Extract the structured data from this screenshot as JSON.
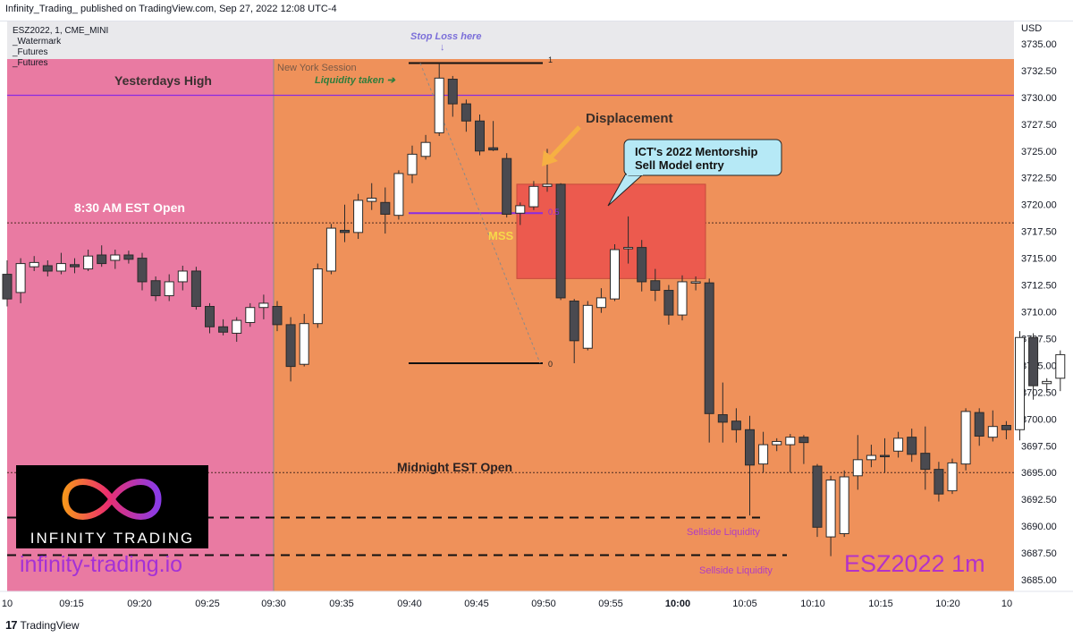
{
  "header": {
    "published": "Infinity_Trading_ published on TradingView.com, Sep 27, 2022 12:08 UTC-4",
    "symbol_line": "ESZ2022, 1, CME_MINI",
    "legend": [
      "_Watermark",
      "_Futures",
      "_Futures"
    ],
    "currency": "USD"
  },
  "footer": {
    "brand": "TradingView"
  },
  "colors": {
    "premarket_bg": "#e97aa2",
    "session_bg": "#ef915a",
    "fvg_box": "#ec5a4e",
    "callout": "#b6e9f6",
    "yesterday_high_line": "#8a2be2",
    "candle_dark": "#4a4a50"
  },
  "annotations": {
    "stop_loss": "Stop Loss here",
    "stop_arrow": "↓",
    "ny_session": "New York Session",
    "liquidity_taken": "Liquidity taken ➔",
    "yesterdays_high": "Yesterdays High",
    "open_830": "8:30 AM EST Open",
    "midnight_open": "Midnight EST Open",
    "displacement": "Displacement",
    "callout_line1": "ICT's 2022 Mentorship",
    "callout_line2": "Sell Model entry",
    "mss": "MSS",
    "fib_1": "1",
    "fib_05": "0.5",
    "fib_0": "0",
    "sellside1": "Sellside Liquidity",
    "sellside2": "Sellside Liquidity"
  },
  "watermark": {
    "name": "INFINITY TRADING",
    "site": "infinity-trading.io",
    "symbol": "ESZ2022   1m"
  },
  "chart_data": {
    "type": "candlestick",
    "symbol": "ESZ2022",
    "interval": "1",
    "exchange": "CME_MINI",
    "ylim": [
      3684.5,
      3735.5
    ],
    "y_ticks": [
      "3735.00",
      "3732.50",
      "3730.00",
      "3727.50",
      "3725.00",
      "3722.50",
      "3720.00",
      "3717.50",
      "3715.00",
      "3712.50",
      "3710.00",
      "3707.50",
      "3705.00",
      "3702.50",
      "3700.00",
      "3697.50",
      "3695.00",
      "3692.50",
      "3690.00",
      "3687.50",
      "3685.00"
    ],
    "x_ticks": [
      "10",
      "09:15",
      "09:20",
      "09:25",
      "09:30",
      "09:35",
      "09:40",
      "09:45",
      "09:50",
      "09:55",
      "10:00",
      "10:05",
      "10:10",
      "10:15",
      "10:20",
      "10"
    ],
    "levels": {
      "yesterdays_high": 3730.2,
      "open_830": 3718.3,
      "midnight_open": 3695.0,
      "sellside_1": 3690.8,
      "sellside_2": 3687.3,
      "fib_1": 3733.2,
      "fib_0": 3705.2,
      "fib_05": 3719.2
    },
    "fvg_zone": {
      "top": 3721.9,
      "bottom": 3713.1
    },
    "candles": [
      {
        "t": "09:10",
        "o": 3713.5,
        "h": 3714.8,
        "l": 3710.5,
        "c": 3711.2
      },
      {
        "t": "09:11",
        "o": 3711.8,
        "h": 3715.0,
        "l": 3710.8,
        "c": 3714.5
      },
      {
        "t": "09:12",
        "o": 3714.2,
        "h": 3715.2,
        "l": 3713.8,
        "c": 3714.6
      },
      {
        "t": "09:13",
        "o": 3714.3,
        "h": 3714.8,
        "l": 3713.3,
        "c": 3713.8
      },
      {
        "t": "09:14",
        "o": 3713.8,
        "h": 3715.5,
        "l": 3713.5,
        "c": 3714.5
      },
      {
        "t": "09:15",
        "o": 3714.4,
        "h": 3715.0,
        "l": 3713.6,
        "c": 3714.2
      },
      {
        "t": "09:16",
        "o": 3714.0,
        "h": 3715.8,
        "l": 3713.8,
        "c": 3715.2
      },
      {
        "t": "09:17",
        "o": 3715.3,
        "h": 3716.2,
        "l": 3714.2,
        "c": 3714.5
      },
      {
        "t": "09:18",
        "o": 3714.8,
        "h": 3715.8,
        "l": 3714.0,
        "c": 3715.3
      },
      {
        "t": "09:19",
        "o": 3715.3,
        "h": 3715.7,
        "l": 3714.5,
        "c": 3714.9
      },
      {
        "t": "09:20",
        "o": 3715.0,
        "h": 3715.5,
        "l": 3712.0,
        "c": 3712.8
      },
      {
        "t": "09:21",
        "o": 3712.9,
        "h": 3713.3,
        "l": 3711.0,
        "c": 3711.5
      },
      {
        "t": "09:22",
        "o": 3711.5,
        "h": 3713.5,
        "l": 3711.0,
        "c": 3712.8
      },
      {
        "t": "09:23",
        "o": 3712.8,
        "h": 3714.3,
        "l": 3712.0,
        "c": 3713.8
      },
      {
        "t": "09:24",
        "o": 3713.8,
        "h": 3714.2,
        "l": 3710.2,
        "c": 3710.5
      },
      {
        "t": "09:25",
        "o": 3710.5,
        "h": 3710.8,
        "l": 3708.0,
        "c": 3708.6
      },
      {
        "t": "09:26",
        "o": 3708.6,
        "h": 3709.3,
        "l": 3707.8,
        "c": 3708.1
      },
      {
        "t": "09:27",
        "o": 3708.0,
        "h": 3709.5,
        "l": 3707.2,
        "c": 3709.2
      },
      {
        "t": "09:28",
        "o": 3709.0,
        "h": 3710.8,
        "l": 3708.6,
        "c": 3710.4
      },
      {
        "t": "09:29",
        "o": 3710.4,
        "h": 3711.6,
        "l": 3709.3,
        "c": 3710.8
      },
      {
        "t": "09:30",
        "o": 3710.5,
        "h": 3711.0,
        "l": 3708.2,
        "c": 3708.8
      },
      {
        "t": "09:31",
        "o": 3708.8,
        "h": 3709.5,
        "l": 3703.5,
        "c": 3704.9
      },
      {
        "t": "09:32",
        "o": 3705.1,
        "h": 3709.8,
        "l": 3704.9,
        "c": 3708.9
      },
      {
        "t": "09:33",
        "o": 3708.9,
        "h": 3714.5,
        "l": 3708.5,
        "c": 3714.0
      },
      {
        "t": "09:34",
        "o": 3713.8,
        "h": 3718.2,
        "l": 3713.5,
        "c": 3717.8
      },
      {
        "t": "09:35",
        "o": 3717.6,
        "h": 3720.0,
        "l": 3716.5,
        "c": 3717.4
      },
      {
        "t": "09:36",
        "o": 3717.4,
        "h": 3721.0,
        "l": 3716.8,
        "c": 3720.4
      },
      {
        "t": "09:37",
        "o": 3720.3,
        "h": 3722.0,
        "l": 3719.5,
        "c": 3720.6
      },
      {
        "t": "09:38",
        "o": 3720.2,
        "h": 3721.6,
        "l": 3717.3,
        "c": 3719.1
      },
      {
        "t": "09:39",
        "o": 3719.0,
        "h": 3723.2,
        "l": 3718.6,
        "c": 3722.9
      },
      {
        "t": "09:40",
        "o": 3722.8,
        "h": 3725.5,
        "l": 3722.0,
        "c": 3724.7
      },
      {
        "t": "09:41",
        "o": 3724.5,
        "h": 3726.5,
        "l": 3724.2,
        "c": 3725.8
      },
      {
        "t": "09:42",
        "o": 3726.7,
        "h": 3733.2,
        "l": 3726.4,
        "c": 3731.8
      },
      {
        "t": "09:43",
        "o": 3731.7,
        "h": 3732.0,
        "l": 3728.2,
        "c": 3729.4
      },
      {
        "t": "09:44",
        "o": 3729.4,
        "h": 3729.8,
        "l": 3726.8,
        "c": 3727.8
      },
      {
        "t": "09:45",
        "o": 3727.8,
        "h": 3728.4,
        "l": 3724.6,
        "c": 3725.0
      },
      {
        "t": "09:46",
        "o": 3725.3,
        "h": 3727.8,
        "l": 3725.0,
        "c": 3725.1
      },
      {
        "t": "09:47",
        "o": 3724.3,
        "h": 3724.8,
        "l": 3718.8,
        "c": 3719.1
      },
      {
        "t": "09:48",
        "o": 3719.2,
        "h": 3720.2,
        "l": 3718.1,
        "c": 3719.9
      },
      {
        "t": "09:49",
        "o": 3719.8,
        "h": 3722.2,
        "l": 3719.5,
        "c": 3721.7
      },
      {
        "t": "09:50",
        "o": 3721.7,
        "h": 3725.2,
        "l": 3721.2,
        "c": 3721.9
      },
      {
        "t": "09:51",
        "o": 3721.9,
        "h": 3722.0,
        "l": 3711.1,
        "c": 3711.3
      },
      {
        "t": "09:52",
        "o": 3711.0,
        "h": 3711.2,
        "l": 3705.2,
        "c": 3707.3
      },
      {
        "t": "09:53",
        "o": 3706.6,
        "h": 3711.0,
        "l": 3706.4,
        "c": 3710.6
      },
      {
        "t": "09:54",
        "o": 3710.4,
        "h": 3712.2,
        "l": 3709.9,
        "c": 3711.3
      },
      {
        "t": "09:55",
        "o": 3711.2,
        "h": 3716.3,
        "l": 3711.0,
        "c": 3715.8
      },
      {
        "t": "09:56",
        "o": 3716.0,
        "h": 3718.9,
        "l": 3714.5,
        "c": 3716.0
      },
      {
        "t": "09:57",
        "o": 3716.0,
        "h": 3716.7,
        "l": 3711.9,
        "c": 3712.8
      },
      {
        "t": "09:58",
        "o": 3712.9,
        "h": 3714.0,
        "l": 3711.0,
        "c": 3712.0
      },
      {
        "t": "09:59",
        "o": 3712.0,
        "h": 3712.5,
        "l": 3708.8,
        "c": 3709.7
      },
      {
        "t": "10:00",
        "o": 3709.7,
        "h": 3713.4,
        "l": 3709.2,
        "c": 3712.8
      },
      {
        "t": "10:01",
        "o": 3712.7,
        "h": 3713.3,
        "l": 3712.0,
        "c": 3712.8
      },
      {
        "t": "10:02",
        "o": 3712.7,
        "h": 3713.1,
        "l": 3697.8,
        "c": 3700.5
      },
      {
        "t": "10:03",
        "o": 3700.4,
        "h": 3703.4,
        "l": 3697.8,
        "c": 3699.7
      },
      {
        "t": "10:04",
        "o": 3699.8,
        "h": 3701.0,
        "l": 3697.8,
        "c": 3699.0
      },
      {
        "t": "10:05",
        "o": 3699.0,
        "h": 3700.3,
        "l": 3691.0,
        "c": 3695.7
      },
      {
        "t": "10:06",
        "o": 3695.8,
        "h": 3698.8,
        "l": 3695.0,
        "c": 3697.6
      },
      {
        "t": "10:07",
        "o": 3697.6,
        "h": 3698.2,
        "l": 3697.0,
        "c": 3697.9
      },
      {
        "t": "10:08",
        "o": 3697.6,
        "h": 3698.6,
        "l": 3695.0,
        "c": 3698.3
      },
      {
        "t": "10:09",
        "o": 3698.3,
        "h": 3698.5,
        "l": 3695.8,
        "c": 3697.8
      },
      {
        "t": "10:10",
        "o": 3695.6,
        "h": 3695.8,
        "l": 3689.0,
        "c": 3689.9
      },
      {
        "t": "10:11",
        "o": 3689.0,
        "h": 3694.7,
        "l": 3687.2,
        "c": 3694.3
      },
      {
        "t": "10:12",
        "o": 3689.3,
        "h": 3695.2,
        "l": 3689.0,
        "c": 3694.6
      },
      {
        "t": "10:13",
        "o": 3694.7,
        "h": 3698.5,
        "l": 3693.4,
        "c": 3696.2
      },
      {
        "t": "10:14",
        "o": 3696.2,
        "h": 3697.6,
        "l": 3695.5,
        "c": 3696.6
      },
      {
        "t": "10:15",
        "o": 3696.6,
        "h": 3698.2,
        "l": 3695.0,
        "c": 3696.5
      },
      {
        "t": "10:16",
        "o": 3697.0,
        "h": 3698.8,
        "l": 3696.4,
        "c": 3698.2
      },
      {
        "t": "10:17",
        "o": 3698.3,
        "h": 3699.1,
        "l": 3696.0,
        "c": 3696.7
      },
      {
        "t": "10:18",
        "o": 3696.8,
        "h": 3699.3,
        "l": 3693.4,
        "c": 3695.3
      },
      {
        "t": "10:19",
        "o": 3695.3,
        "h": 3696.0,
        "l": 3692.3,
        "c": 3693.0
      },
      {
        "t": "10:20",
        "o": 3693.3,
        "h": 3696.3,
        "l": 3693.0,
        "c": 3695.9
      },
      {
        "t": "10:21",
        "o": 3695.8,
        "h": 3701.0,
        "l": 3695.2,
        "c": 3700.7
      },
      {
        "t": "10:22",
        "o": 3700.6,
        "h": 3701.0,
        "l": 3697.5,
        "c": 3698.4
      },
      {
        "t": "10:23",
        "o": 3698.3,
        "h": 3700.8,
        "l": 3697.9,
        "c": 3699.3
      },
      {
        "t": "10:24",
        "o": 3699.4,
        "h": 3699.8,
        "l": 3698.1,
        "c": 3699.0
      },
      {
        "t": "10:25",
        "o": 3699.0,
        "h": 3708.2,
        "l": 3698.0,
        "c": 3707.6
      },
      {
        "t": "10:26",
        "o": 3707.6,
        "h": 3708.0,
        "l": 3701.8,
        "c": 3703.1
      },
      {
        "t": "10:27",
        "o": 3703.3,
        "h": 3703.8,
        "l": 3702.5,
        "c": 3703.5
      },
      {
        "t": "10:28",
        "o": 3703.8,
        "h": 3706.4,
        "l": 3702.6,
        "c": 3706.0
      }
    ]
  }
}
